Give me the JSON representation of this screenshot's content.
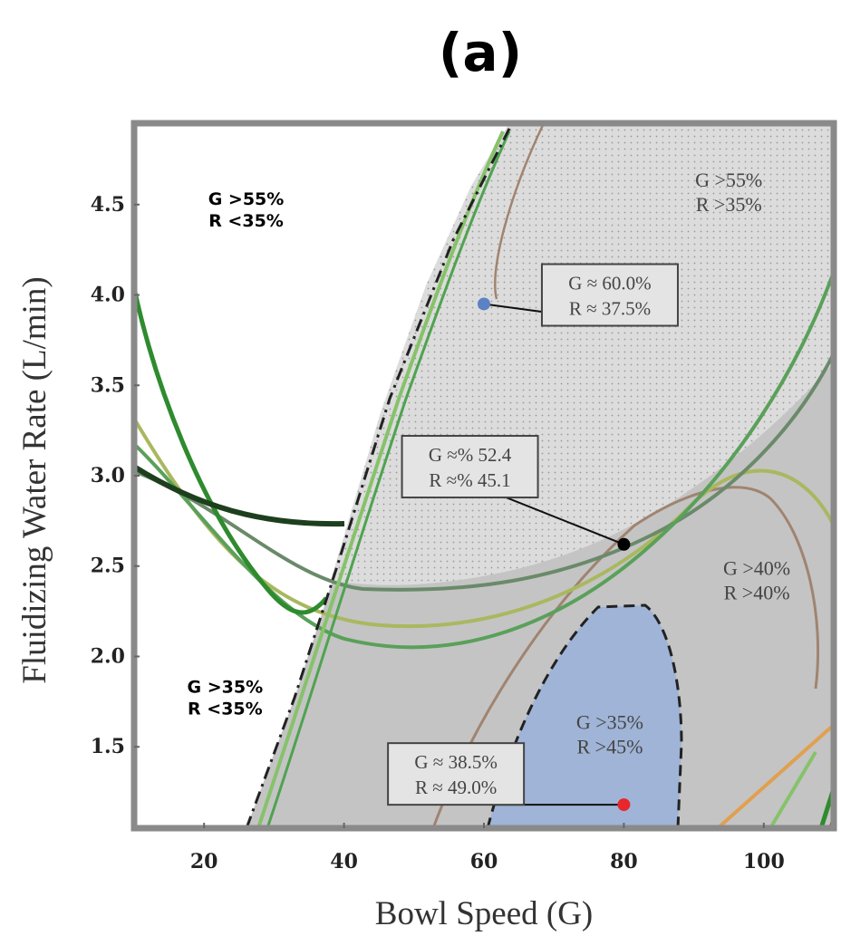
{
  "chart_data": {
    "type": "contour",
    "panel_label": "(a)",
    "xlabel": "Bowl Speed (G)",
    "ylabel": "Fluidizing Water Rate (L/min)",
    "xlim": [
      10,
      110
    ],
    "ylim": [
      1.05,
      4.95
    ],
    "x_ticks": [
      {
        "value": 20,
        "label": "20"
      },
      {
        "value": 40,
        "label": "40"
      },
      {
        "value": 60,
        "label": "60"
      },
      {
        "value": 80,
        "label": "80"
      },
      {
        "value": 100,
        "label": "100"
      }
    ],
    "y_ticks": [
      {
        "value": 1.5,
        "label": "1.5"
      },
      {
        "value": 2.0,
        "label": "2.0"
      },
      {
        "value": 2.5,
        "label": "2.5"
      },
      {
        "value": 3.0,
        "label": "3.0"
      },
      {
        "value": 3.5,
        "label": "3.5"
      },
      {
        "value": 4.0,
        "label": "4.0"
      },
      {
        "value": 4.5,
        "label": "4.5"
      }
    ],
    "colors": {
      "feasible_region": "#c4c4c4",
      "dotted_region": "#dedede",
      "blue_region": "#9fb4d6",
      "frame": "#8a8a8a",
      "boundary": "#2a2a2a",
      "green_dark": "#1e3f1e",
      "green_mid": "#3e8f3e",
      "green_sage": "#6a9a6a",
      "green_olive": "#a9b85f",
      "green_light": "#86c26a",
      "brown": "#a08470",
      "orange": "#e0a050",
      "point_blue": "#5b82c4",
      "point_black": "#000000",
      "point_red": "#e8262b"
    },
    "region_labels": [
      {
        "id": "top-right",
        "lines": [
          "G >55%",
          "R >35%"
        ],
        "x": 95,
        "y": 4.6,
        "style": "normal"
      },
      {
        "id": "middle-right",
        "lines": [
          "G >40%",
          "R >40%"
        ],
        "x": 99,
        "y": 2.45,
        "style": "normal"
      },
      {
        "id": "bottom-blue",
        "lines": [
          "G >35%",
          "R >45%"
        ],
        "x": 78,
        "y": 1.6,
        "style": "normal"
      },
      {
        "id": "top-left",
        "lines": [
          "G >55%",
          "R <35%"
        ],
        "x": 26,
        "y": 4.5,
        "style": "bold"
      },
      {
        "id": "bottom-left",
        "lines": [
          "G >35%",
          "R <35%"
        ],
        "x": 23,
        "y": 1.8,
        "style": "bold"
      }
    ],
    "points": [
      {
        "id": "blue-point",
        "x": 60,
        "y": 3.95,
        "label": [
          "G ≈ 60.0%",
          "R ≈ 37.5%"
        ],
        "box_at": [
          78,
          4.0
        ],
        "color_key": "point_blue"
      },
      {
        "id": "black-point",
        "x": 80,
        "y": 2.62,
        "label": [
          "G ≈% 52.4",
          "R ≈% 45.1"
        ],
        "box_at": [
          58,
          3.05
        ],
        "color_key": "point_black"
      },
      {
        "id": "red-point",
        "x": 80,
        "y": 1.18,
        "label": [
          "G ≈ 38.5%",
          "R ≈ 49.0%"
        ],
        "box_at": [
          56,
          1.35
        ],
        "color_key": "point_red"
      }
    ]
  }
}
